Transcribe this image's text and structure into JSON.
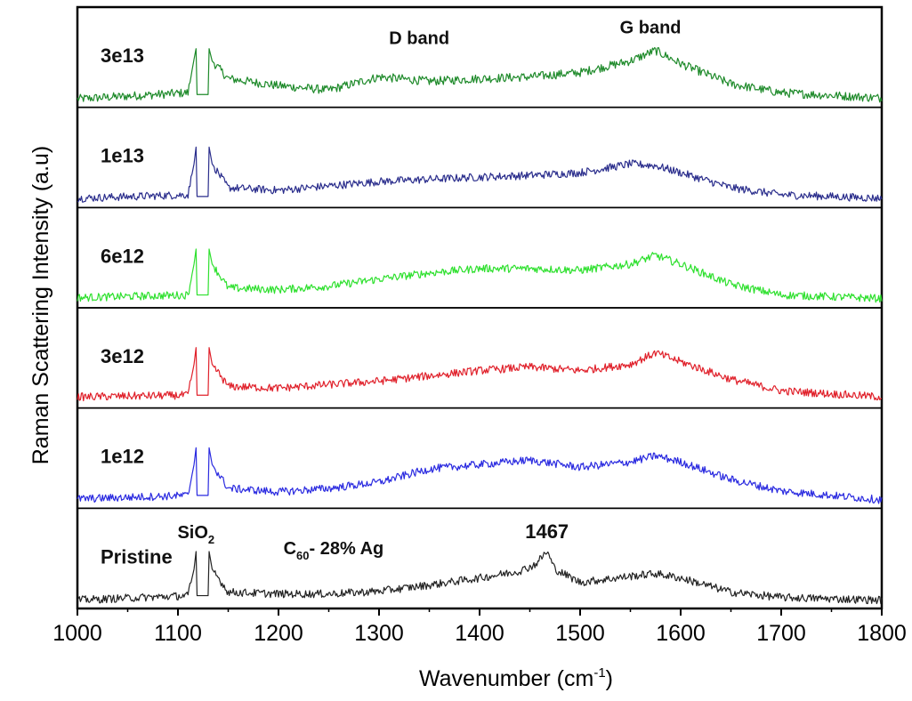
{
  "chart_data": {
    "type": "line",
    "title": "",
    "xlabel": "Wavenumber (cm",
    "xlabel_sup": "-1",
    "xlabel_end": ")",
    "ylabel": "Raman Scattering Intensity (a.u)",
    "xlim": [
      1000,
      1800
    ],
    "xticks": [
      1000,
      1100,
      1200,
      1300,
      1400,
      1500,
      1600,
      1700,
      1800
    ],
    "xtick_labels": [
      "1000",
      "1100",
      "1200",
      "1300",
      "1400",
      "1500",
      "1600",
      "1700",
      "1800"
    ],
    "ylim": [
      0,
      1
    ],
    "grid": false,
    "legend": "none",
    "layout": "stacked panels",
    "series": [
      {
        "name": "3e13",
        "color": "#1e8a2a",
        "noise": 0.05,
        "points": [
          [
            1000,
            0.05
          ],
          [
            1110,
            0.12
          ],
          [
            1116,
            0.5
          ],
          [
            1118,
            0.62
          ],
          [
            1119,
            0.1
          ],
          [
            1130,
            0.1
          ],
          [
            1131,
            0.62
          ],
          [
            1134,
            0.48
          ],
          [
            1150,
            0.28
          ],
          [
            1200,
            0.2
          ],
          [
            1250,
            0.15
          ],
          [
            1300,
            0.3
          ],
          [
            1350,
            0.25
          ],
          [
            1400,
            0.28
          ],
          [
            1450,
            0.3
          ],
          [
            1500,
            0.35
          ],
          [
            1550,
            0.48
          ],
          [
            1575,
            0.6
          ],
          [
            1600,
            0.45
          ],
          [
            1650,
            0.22
          ],
          [
            1700,
            0.12
          ],
          [
            1800,
            0.06
          ]
        ]
      },
      {
        "name": "1e13",
        "color": "#2a2d8c",
        "noise": 0.045,
        "points": [
          [
            1000,
            0.06
          ],
          [
            1110,
            0.1
          ],
          [
            1116,
            0.45
          ],
          [
            1118,
            0.64
          ],
          [
            1119,
            0.08
          ],
          [
            1130,
            0.08
          ],
          [
            1131,
            0.64
          ],
          [
            1134,
            0.45
          ],
          [
            1150,
            0.18
          ],
          [
            1200,
            0.15
          ],
          [
            1250,
            0.2
          ],
          [
            1300,
            0.25
          ],
          [
            1400,
            0.3
          ],
          [
            1450,
            0.32
          ],
          [
            1500,
            0.35
          ],
          [
            1550,
            0.45
          ],
          [
            1575,
            0.43
          ],
          [
            1600,
            0.35
          ],
          [
            1650,
            0.18
          ],
          [
            1700,
            0.1
          ],
          [
            1800,
            0.06
          ]
        ]
      },
      {
        "name": "6e12",
        "color": "#2ee02e",
        "noise": 0.045,
        "points": [
          [
            1000,
            0.07
          ],
          [
            1110,
            0.1
          ],
          [
            1116,
            0.45
          ],
          [
            1118,
            0.62
          ],
          [
            1119,
            0.1
          ],
          [
            1130,
            0.1
          ],
          [
            1131,
            0.62
          ],
          [
            1134,
            0.45
          ],
          [
            1150,
            0.18
          ],
          [
            1200,
            0.16
          ],
          [
            1250,
            0.2
          ],
          [
            1300,
            0.28
          ],
          [
            1350,
            0.35
          ],
          [
            1400,
            0.4
          ],
          [
            1450,
            0.4
          ],
          [
            1500,
            0.38
          ],
          [
            1550,
            0.45
          ],
          [
            1575,
            0.55
          ],
          [
            1600,
            0.45
          ],
          [
            1650,
            0.22
          ],
          [
            1700,
            0.1
          ],
          [
            1800,
            0.06
          ]
        ]
      },
      {
        "name": "3e12",
        "color": "#e0202a",
        "noise": 0.045,
        "points": [
          [
            1000,
            0.08
          ],
          [
            1110,
            0.1
          ],
          [
            1116,
            0.45
          ],
          [
            1118,
            0.64
          ],
          [
            1119,
            0.1
          ],
          [
            1130,
            0.1
          ],
          [
            1131,
            0.64
          ],
          [
            1134,
            0.45
          ],
          [
            1150,
            0.2
          ],
          [
            1200,
            0.18
          ],
          [
            1250,
            0.22
          ],
          [
            1300,
            0.26
          ],
          [
            1350,
            0.32
          ],
          [
            1400,
            0.38
          ],
          [
            1450,
            0.42
          ],
          [
            1500,
            0.38
          ],
          [
            1550,
            0.45
          ],
          [
            1575,
            0.58
          ],
          [
            1600,
            0.48
          ],
          [
            1650,
            0.28
          ],
          [
            1700,
            0.15
          ],
          [
            1800,
            0.08
          ]
        ]
      },
      {
        "name": "1e12",
        "color": "#2a2ae0",
        "noise": 0.045,
        "points": [
          [
            1000,
            0.06
          ],
          [
            1110,
            0.1
          ],
          [
            1116,
            0.45
          ],
          [
            1118,
            0.64
          ],
          [
            1119,
            0.1
          ],
          [
            1130,
            0.1
          ],
          [
            1131,
            0.64
          ],
          [
            1134,
            0.45
          ],
          [
            1150,
            0.18
          ],
          [
            1200,
            0.14
          ],
          [
            1250,
            0.18
          ],
          [
            1300,
            0.25
          ],
          [
            1350,
            0.4
          ],
          [
            1400,
            0.45
          ],
          [
            1450,
            0.5
          ],
          [
            1500,
            0.42
          ],
          [
            1550,
            0.48
          ],
          [
            1575,
            0.55
          ],
          [
            1600,
            0.48
          ],
          [
            1650,
            0.28
          ],
          [
            1700,
            0.15
          ],
          [
            1800,
            0.05
          ]
        ]
      },
      {
        "name": "Pristine",
        "color": "#222222",
        "noise": 0.045,
        "points": [
          [
            1000,
            0.05
          ],
          [
            1110,
            0.1
          ],
          [
            1116,
            0.4
          ],
          [
            1118,
            0.6
          ],
          [
            1119,
            0.1
          ],
          [
            1130,
            0.1
          ],
          [
            1131,
            0.6
          ],
          [
            1134,
            0.4
          ],
          [
            1150,
            0.14
          ],
          [
            1200,
            0.12
          ],
          [
            1250,
            0.12
          ],
          [
            1300,
            0.15
          ],
          [
            1350,
            0.22
          ],
          [
            1400,
            0.3
          ],
          [
            1440,
            0.38
          ],
          [
            1455,
            0.45
          ],
          [
            1467,
            0.6
          ],
          [
            1475,
            0.4
          ],
          [
            1500,
            0.25
          ],
          [
            1550,
            0.32
          ],
          [
            1575,
            0.35
          ],
          [
            1600,
            0.3
          ],
          [
            1650,
            0.14
          ],
          [
            1700,
            0.08
          ],
          [
            1800,
            0.05
          ]
        ]
      }
    ],
    "annotations": [
      {
        "text": "D band",
        "x": 1340,
        "series": "3e13"
      },
      {
        "text": "G band",
        "x": 1570,
        "series": "3e13"
      },
      {
        "text": "SiO",
        "sub": "2",
        "x": 1118,
        "series": "Pristine"
      },
      {
        "text": "C",
        "sub": "60",
        "rest": "- 28% Ag",
        "x": 1205,
        "series": "Pristine"
      },
      {
        "text": "1467",
        "x": 1467,
        "series": "Pristine"
      }
    ]
  }
}
